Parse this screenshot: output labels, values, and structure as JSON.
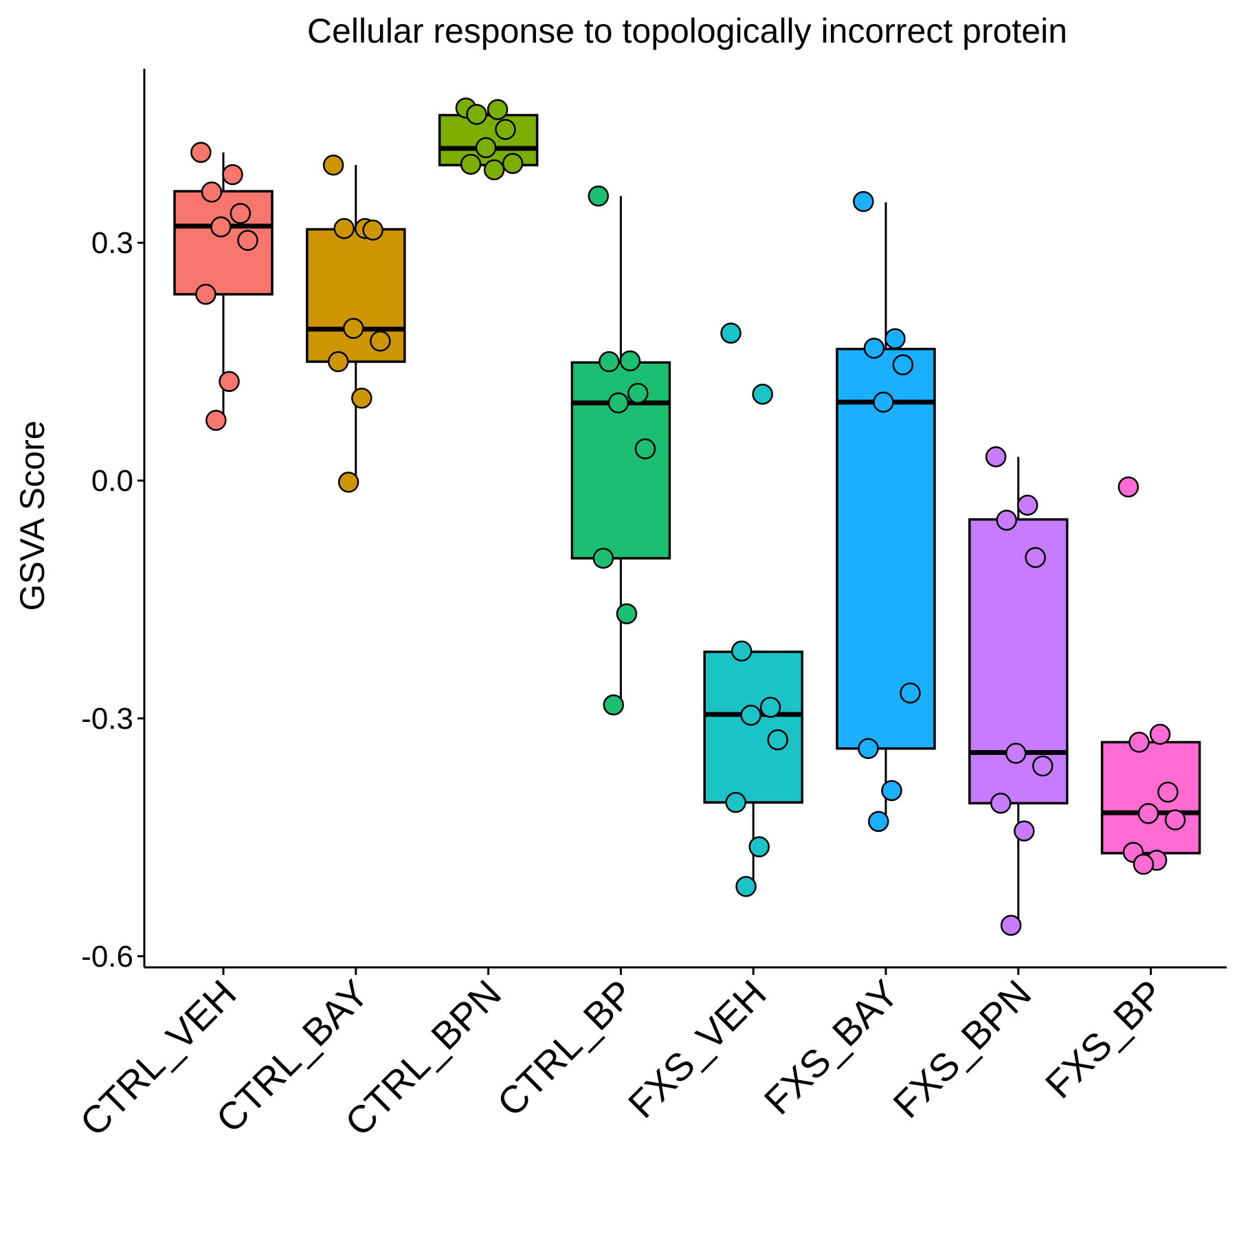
{
  "chart_data": {
    "type": "box",
    "title": "Cellular response to topologically incorrect protein",
    "xlabel": "",
    "ylabel": "GSVA Score",
    "ylim": [
      -0.612,
      0.52
    ],
    "yticks": [
      {
        "value": 0.3,
        "label": "0.3"
      },
      {
        "value": 0.0,
        "label": "0.0"
      },
      {
        "value": -0.3,
        "label": "-0.3"
      },
      {
        "value": -0.6,
        "label": "-0.6"
      }
    ],
    "grid": false,
    "legend": "none",
    "groups": [
      {
        "category": "CTRL_VEH",
        "color": "#F8766D",
        "box": {
          "whisker_low": 0.075,
          "q1": 0.235,
          "median": 0.321,
          "q3": 0.365,
          "whisker_high": 0.414
        },
        "points": [
          0.414,
          0.386,
          0.364,
          0.337,
          0.32,
          0.303,
          0.235,
          0.125,
          0.076
        ]
      },
      {
        "category": "CTRL_BAY",
        "color": "#CD9600",
        "box": {
          "whisker_low": -0.002,
          "q1": 0.15,
          "median": 0.191,
          "q3": 0.317,
          "whisker_high": 0.398
        },
        "points": [
          0.398,
          0.318,
          0.318,
          0.316,
          0.192,
          0.176,
          0.15,
          0.104,
          -0.002
        ]
      },
      {
        "category": "CTRL_BPN",
        "color": "#7CAE00",
        "box": {
          "whisker_low": 0.398,
          "q1": 0.398,
          "median": 0.419,
          "q3": 0.461,
          "whisker_high": 0.471
        },
        "points": [
          0.47,
          0.468,
          0.462,
          0.443,
          0.42,
          0.4,
          0.399,
          0.392
        ]
      },
      {
        "category": "CTRL_BP",
        "color": "#1CBE71",
        "box": {
          "whisker_low": -0.283,
          "q1": -0.098,
          "median": 0.098,
          "q3": 0.149,
          "whisker_high": 0.359
        },
        "points": [
          0.359,
          0.151,
          0.15,
          0.11,
          0.098,
          0.04,
          -0.098,
          -0.168,
          -0.283
        ]
      },
      {
        "category": "FXS_VEH",
        "color": "#1BC3C6",
        "box": {
          "whisker_low": -0.51,
          "q1": -0.406,
          "median": -0.295,
          "q3": -0.216,
          "whisker_high": -0.216
        },
        "points": [
          0.186,
          0.109,
          -0.215,
          -0.286,
          -0.296,
          -0.327,
          -0.406,
          -0.462,
          -0.512
        ]
      },
      {
        "category": "FXS_BAY",
        "color": "#1AAFFF",
        "box": {
          "whisker_low": -0.428,
          "q1": -0.338,
          "median": 0.099,
          "q3": 0.166,
          "whisker_high": 0.351
        },
        "points": [
          0.352,
          0.179,
          0.167,
          0.146,
          0.099,
          -0.268,
          -0.338,
          -0.391,
          -0.43
        ]
      },
      {
        "category": "FXS_BPN",
        "color": "#C77CFF",
        "box": {
          "whisker_low": -0.56,
          "q1": -0.407,
          "median": -0.343,
          "q3": -0.049,
          "whisker_high": 0.03
        },
        "points": [
          0.03,
          -0.031,
          -0.05,
          -0.097,
          -0.344,
          -0.36,
          -0.407,
          -0.442,
          -0.561
        ]
      },
      {
        "category": "FXS_BP",
        "color": "#FF6BD3",
        "box": {
          "whisker_low": -0.47,
          "q1": -0.47,
          "median": -0.419,
          "q3": -0.33,
          "whisker_high": -0.33
        },
        "points": [
          -0.008,
          -0.32,
          -0.33,
          -0.393,
          -0.42,
          -0.428,
          -0.469,
          -0.479,
          -0.484
        ]
      }
    ]
  }
}
